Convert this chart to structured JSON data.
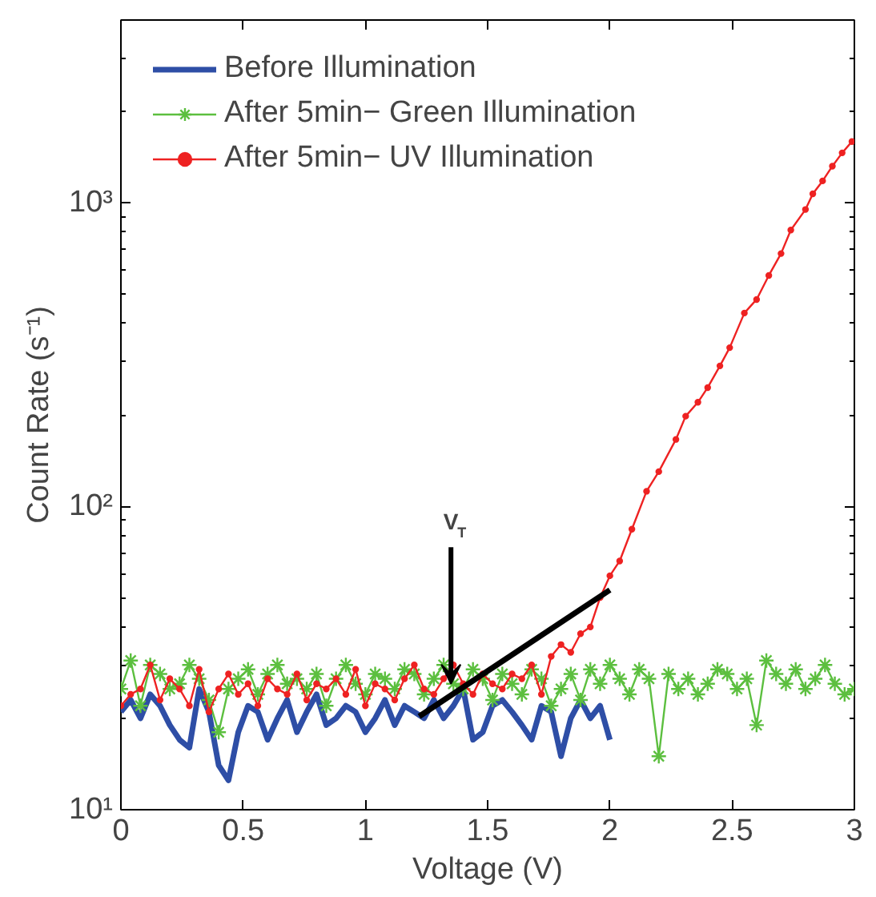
{
  "chart_data": {
    "type": "line",
    "xlabel": "Voltage (V)",
    "ylabel": "Count Rate (s⁻¹)",
    "log": "y",
    "xlim": [
      0,
      3
    ],
    "ylim": [
      10,
      4000
    ],
    "xticks": [
      0,
      0.5,
      1,
      1.5,
      2,
      2.5,
      3
    ],
    "yticks": [
      {
        "value": 10,
        "label": "10¹"
      },
      {
        "value": 100,
        "label": "10²"
      },
      {
        "value": 1000,
        "label": "10³"
      }
    ],
    "grid": false,
    "legend": "top left",
    "annotations": [
      {
        "text": "V$_{T}$",
        "x": 1.35,
        "y": 26
      }
    ],
    "series": [
      {
        "name": "Before Illumination",
        "color": "#2e4ea6",
        "marker": "none",
        "x": [
          0,
          0.04,
          0.08,
          0.12,
          0.16,
          0.2,
          0.24,
          0.28,
          0.32,
          0.36,
          0.4,
          0.44,
          0.48,
          0.52,
          0.56,
          0.6,
          0.64,
          0.68,
          0.72,
          0.76,
          0.8,
          0.84,
          0.88,
          0.92,
          0.96,
          1,
          1.04,
          1.08,
          1.12,
          1.16,
          1.2,
          1.24,
          1.28,
          1.32,
          1.36,
          1.4,
          1.44,
          1.48,
          1.52,
          1.56,
          1.6,
          1.64,
          1.68,
          1.72,
          1.76,
          1.8,
          1.84,
          1.88,
          1.92,
          1.96,
          2
        ],
        "values": [
          21,
          23,
          20,
          24,
          22,
          19,
          17,
          16,
          25,
          21,
          14,
          12.5,
          18,
          22,
          21,
          17,
          20,
          23,
          18,
          21,
          24,
          19,
          20,
          22,
          21,
          18,
          20,
          23,
          19,
          22,
          21,
          20,
          23,
          20,
          22,
          25,
          17,
          18,
          22,
          23,
          21,
          19,
          17,
          22,
          21,
          15,
          20,
          23,
          20,
          22,
          17
        ]
      },
      {
        "name": "After 5min− Green Illumination",
        "color": "#5cbf3f",
        "marker": "cross",
        "x": [
          0,
          0.04,
          0.08,
          0.12,
          0.16,
          0.2,
          0.24,
          0.28,
          0.32,
          0.36,
          0.4,
          0.44,
          0.48,
          0.52,
          0.56,
          0.6,
          0.64,
          0.68,
          0.72,
          0.76,
          0.8,
          0.84,
          0.88,
          0.92,
          0.96,
          1,
          1.04,
          1.08,
          1.12,
          1.16,
          1.2,
          1.24,
          1.28,
          1.32,
          1.36,
          1.4,
          1.44,
          1.48,
          1.52,
          1.56,
          1.6,
          1.64,
          1.68,
          1.72,
          1.76,
          1.8,
          1.84,
          1.88,
          1.92,
          1.96,
          2,
          2.04,
          2.08,
          2.12,
          2.16,
          2.2,
          2.24,
          2.28,
          2.32,
          2.36,
          2.4,
          2.44,
          2.48,
          2.52,
          2.56,
          2.6,
          2.64,
          2.68,
          2.72,
          2.76,
          2.8,
          2.84,
          2.88,
          2.92,
          2.96,
          3
        ],
        "values": [
          25,
          31,
          22,
          30,
          28,
          25,
          26,
          30,
          27,
          23,
          18,
          25,
          27,
          29,
          24,
          28,
          30,
          26,
          27,
          25,
          28,
          22,
          27,
          30,
          26,
          24,
          28,
          27,
          25,
          29,
          28,
          24,
          27,
          30,
          26,
          25,
          29,
          27,
          23,
          28,
          26,
          24,
          29,
          27,
          22,
          25,
          28,
          23,
          29,
          26,
          30,
          27,
          24,
          29,
          27,
          15,
          28,
          25,
          27,
          24,
          26,
          29,
          28,
          25,
          27,
          19,
          31,
          28,
          26,
          29,
          25,
          27,
          30,
          26,
          24,
          25
        ]
      },
      {
        "name": "After 5min− UV Illumination",
        "color": "#ee2222",
        "marker": "circle",
        "x": [
          0,
          0.04,
          0.08,
          0.12,
          0.16,
          0.2,
          0.24,
          0.28,
          0.32,
          0.36,
          0.4,
          0.44,
          0.48,
          0.52,
          0.56,
          0.6,
          0.64,
          0.68,
          0.72,
          0.76,
          0.8,
          0.84,
          0.88,
          0.92,
          0.96,
          1,
          1.04,
          1.08,
          1.12,
          1.16,
          1.2,
          1.24,
          1.28,
          1.32,
          1.36,
          1.4,
          1.44,
          1.48,
          1.52,
          1.56,
          1.6,
          1.64,
          1.68,
          1.72,
          1.76,
          1.8,
          1.84,
          1.88,
          1.92,
          1.96,
          2,
          2.04,
          2.09,
          2.15,
          2.2,
          2.27,
          2.31,
          2.36,
          2.4,
          2.45,
          2.49,
          2.55,
          2.6,
          2.65,
          2.7,
          2.74,
          2.8,
          2.83,
          2.87,
          2.91,
          2.95,
          2.99
        ],
        "values": [
          22,
          24,
          25,
          30,
          23,
          27,
          25,
          22,
          29,
          21,
          25,
          28,
          24,
          26,
          22,
          27,
          25,
          24,
          28,
          23,
          26,
          25,
          27,
          24,
          29,
          22,
          26,
          25,
          23,
          27,
          30,
          25,
          24,
          27,
          30,
          26,
          24,
          28,
          26,
          25,
          28,
          27,
          30,
          24,
          32,
          35,
          33,
          38,
          40,
          50,
          59,
          66,
          84,
          112,
          130,
          166,
          198,
          220,
          246,
          290,
          333,
          433,
          480,
          576,
          680,
          813,
          950,
          1070,
          1180,
          1320,
          1460,
          1590
        ]
      },
      {
        "color": "#000000",
        "marker": "none",
        "x": [
          1.22,
          2.0
        ],
        "values": [
          20.3,
          53
        ]
      }
    ]
  }
}
